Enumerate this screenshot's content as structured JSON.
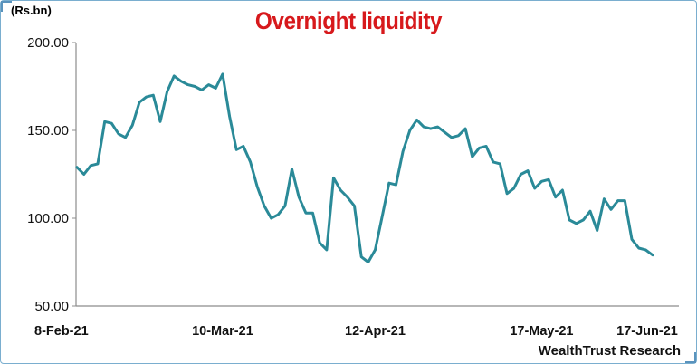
{
  "chart_data": {
    "type": "line",
    "title": "Overnight liquidity",
    "ylabel": "(Rs.bn)",
    "xlabel": "",
    "ylim": [
      50,
      200
    ],
    "yticks": [
      "50.00",
      "100.00",
      "150.00",
      "200.00"
    ],
    "xticks": [
      "8-Feb-21",
      "10-Mar-21",
      "12-Apr-21",
      "17-May-21",
      "17-Jun-21"
    ],
    "xtick_positions": [
      0,
      21,
      43,
      67,
      88
    ],
    "grid": false,
    "series": [
      {
        "values": [
          129,
          125,
          130,
          131,
          155,
          154,
          148,
          146,
          153,
          166,
          169,
          170,
          155,
          172,
          181,
          178,
          176,
          175,
          173,
          176,
          174,
          182,
          158,
          139,
          141,
          132,
          118,
          107,
          100,
          102,
          107,
          128,
          112,
          103,
          103,
          86,
          82,
          123,
          116,
          112,
          107,
          78,
          75,
          82,
          101,
          120,
          119,
          138,
          150,
          156,
          152,
          151,
          152,
          149,
          146,
          147,
          151,
          135,
          140,
          141,
          132,
          131,
          114,
          117,
          125,
          127,
          117,
          121,
          122,
          112,
          116,
          99,
          97,
          99,
          104,
          93,
          111,
          105,
          110,
          110,
          88,
          83,
          82,
          79
        ]
      }
    ]
  },
  "source_label": "WealthTrust Research",
  "colors": {
    "line": "#2a8a98",
    "title": "#d7191c",
    "axis": "#8c8c8c",
    "frame": "#7aaecf"
  }
}
